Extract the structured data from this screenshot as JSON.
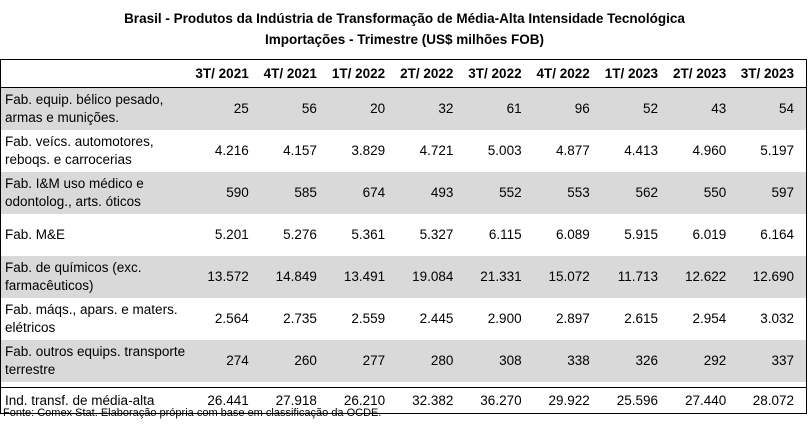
{
  "title": {
    "line1": "Brasil - Produtos da Indústria de Transformação de Média-Alta Intensidade Tecnológica",
    "line2": "Importações - Trimestre (US$ milhões FOB)"
  },
  "columns": [
    "",
    "3T/ 2021",
    "4T/ 2021",
    "1T/ 2022",
    "2T/ 2022",
    "3T/ 2022",
    "4T/ 2022",
    "1T/ 2023",
    "2T/ 2023",
    "3T/ 2023"
  ],
  "rows": [
    {
      "label": "Fab. equip. bélico pesado, armas e munições.",
      "values": [
        "25",
        "56",
        "20",
        "32",
        "61",
        "96",
        "52",
        "43",
        "54"
      ],
      "shaded": true
    },
    {
      "label": "Fab. veícs. automotores, reboqs. e carrocerias",
      "values": [
        "4.216",
        "4.157",
        "3.829",
        "4.721",
        "5.003",
        "4.877",
        "4.413",
        "4.960",
        "5.197"
      ],
      "shaded": false
    },
    {
      "label": "Fab. I&M uso médico e odontolog., arts. óticos",
      "values": [
        "590",
        "585",
        "674",
        "493",
        "552",
        "553",
        "562",
        "550",
        "597"
      ],
      "shaded": true
    },
    {
      "label": "Fab. M&E",
      "values": [
        "5.201",
        "5.276",
        "5.361",
        "5.327",
        "6.115",
        "6.089",
        "5.915",
        "6.019",
        "6.164"
      ],
      "shaded": false
    },
    {
      "label": "Fab. de químicos (exc. farmacêuticos)",
      "values": [
        "13.572",
        "14.849",
        "13.491",
        "19.084",
        "21.331",
        "15.072",
        "11.713",
        "12.622",
        "12.690"
      ],
      "shaded": true
    },
    {
      "label": "Fab. máqs., apars. e maters. elétricos",
      "values": [
        "2.564",
        "2.735",
        "2.559",
        "2.445",
        "2.900",
        "2.897",
        "2.615",
        "2.954",
        "3.032"
      ],
      "shaded": false
    },
    {
      "label": "Fab. outros equips. transporte terrestre",
      "values": [
        "274",
        "260",
        "277",
        "280",
        "308",
        "338",
        "326",
        "292",
        "337"
      ],
      "shaded": true
    }
  ],
  "total": {
    "label": "Ind. transf. de média-alta",
    "values": [
      "26.441",
      "27.918",
      "26.210",
      "32.382",
      "36.270",
      "29.922",
      "25.596",
      "27.440",
      "28.072"
    ]
  },
  "source": "Fonte: Comex Stat. Elaboração própria com base em classificação da OCDE."
}
